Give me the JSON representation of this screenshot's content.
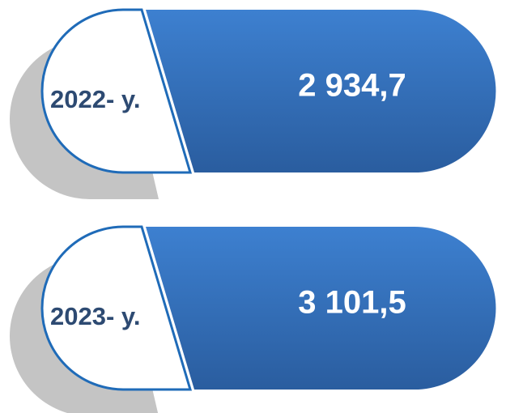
{
  "items": [
    {
      "label": "2022- y.",
      "value": "2 934,7"
    },
    {
      "label": "2023- y.",
      "value": "3 101,5"
    }
  ]
}
